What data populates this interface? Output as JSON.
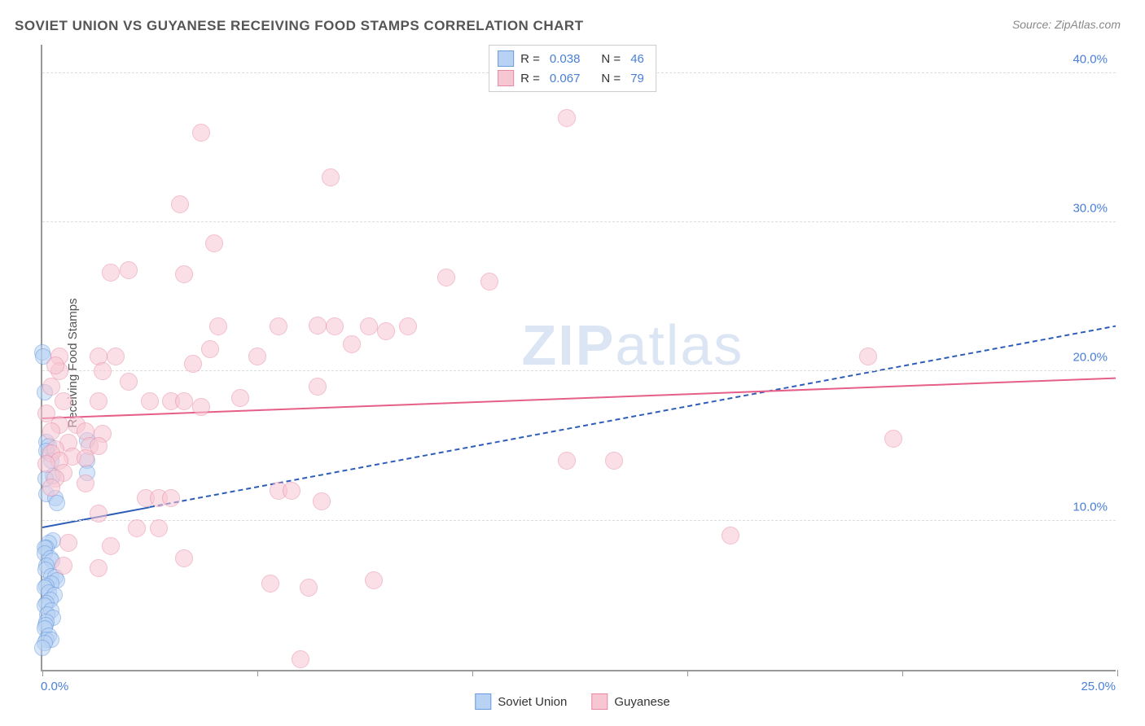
{
  "title": "SOVIET UNION VS GUYANESE RECEIVING FOOD STAMPS CORRELATION CHART",
  "source_label": "Source:",
  "source_value": "ZipAtlas.com",
  "y_axis_label": "Receiving Food Stamps",
  "watermark": {
    "bold": "ZIP",
    "rest": "atlas"
  },
  "chart": {
    "type": "scatter",
    "background_color": "#ffffff",
    "grid_color": "#dddddd",
    "axis_color": "#999999",
    "x": {
      "min": 0,
      "max": 25,
      "ticks": [
        0,
        5,
        10,
        15,
        20,
        25
      ],
      "tick_labels": {
        "0": "0.0%",
        "25": "25.0%"
      }
    },
    "y": {
      "min": 0,
      "max": 42,
      "ticks": [
        10,
        20,
        30,
        40
      ],
      "tick_labels": {
        "10": "10.0%",
        "20": "20.0%",
        "30": "30.0%",
        "40": "40.0%"
      }
    },
    "tick_label_color": "#4a7fd6",
    "tick_label_fontsize": 15,
    "series": [
      {
        "name": "Soviet Union",
        "marker_fill": "#b8d2f3",
        "marker_stroke": "#6a9ae0",
        "marker_fill_opacity": 0.55,
        "marker_radius": 10,
        "trend": {
          "color": "#2e5db8",
          "width": 2.5,
          "dash": "6 6",
          "y_at_xmin": 9.5,
          "y_at_xmax": 23.0,
          "solid_until_x": 2.5
        },
        "R": "0.038",
        "N": "46",
        "points": [
          [
            0.0,
            21.3
          ],
          [
            0.02,
            21.0
          ],
          [
            0.05,
            18.6
          ],
          [
            0.1,
            15.3
          ],
          [
            0.15,
            15.0
          ],
          [
            0.1,
            14.7
          ],
          [
            0.2,
            14.0
          ],
          [
            0.25,
            13.0
          ],
          [
            0.08,
            12.8
          ],
          [
            0.1,
            11.8
          ],
          [
            0.3,
            11.5
          ],
          [
            0.35,
            11.2
          ],
          [
            0.25,
            8.7
          ],
          [
            0.15,
            8.5
          ],
          [
            0.1,
            8.2
          ],
          [
            0.05,
            8.2
          ],
          [
            0.05,
            7.8
          ],
          [
            0.18,
            7.5
          ],
          [
            0.22,
            7.3
          ],
          [
            0.1,
            7.0
          ],
          [
            0.08,
            6.7
          ],
          [
            0.2,
            6.3
          ],
          [
            0.3,
            6.2
          ],
          [
            0.35,
            6.0
          ],
          [
            0.2,
            5.8
          ],
          [
            0.1,
            5.6
          ],
          [
            0.05,
            5.5
          ],
          [
            0.15,
            5.2
          ],
          [
            0.28,
            5.0
          ],
          [
            0.18,
            4.7
          ],
          [
            0.1,
            4.5
          ],
          [
            0.05,
            4.3
          ],
          [
            0.2,
            4.0
          ],
          [
            0.12,
            3.7
          ],
          [
            0.25,
            3.5
          ],
          [
            0.1,
            3.2
          ],
          [
            0.08,
            3.0
          ],
          [
            0.05,
            2.8
          ],
          [
            0.15,
            2.3
          ],
          [
            0.1,
            2.0
          ],
          [
            0.2,
            2.0
          ],
          [
            0.05,
            1.8
          ],
          [
            0.0,
            1.5
          ],
          [
            1.05,
            15.4
          ],
          [
            1.05,
            14.0
          ],
          [
            1.05,
            13.2
          ]
        ]
      },
      {
        "name": "Guyanese",
        "marker_fill": "#f7c6d3",
        "marker_stroke": "#e88aa5",
        "marker_fill_opacity": 0.55,
        "marker_radius": 11,
        "trend": {
          "color": "#e65f88",
          "width": 2.5,
          "dash": null,
          "y_at_xmin": 16.8,
          "y_at_xmax": 19.5
        },
        "R": "0.067",
        "N": "79",
        "points": [
          [
            12.2,
            37.0
          ],
          [
            3.7,
            36.0
          ],
          [
            6.7,
            33.0
          ],
          [
            3.2,
            31.2
          ],
          [
            4.0,
            28.6
          ],
          [
            2.0,
            26.8
          ],
          [
            1.6,
            26.6
          ],
          [
            3.3,
            26.5
          ],
          [
            9.4,
            26.3
          ],
          [
            10.4,
            26.0
          ],
          [
            6.4,
            23.1
          ],
          [
            6.8,
            23.0
          ],
          [
            4.1,
            23.0
          ],
          [
            5.5,
            23.0
          ],
          [
            7.6,
            23.0
          ],
          [
            8.5,
            23.0
          ],
          [
            8.0,
            22.7
          ],
          [
            0.4,
            21.0
          ],
          [
            1.3,
            21.0
          ],
          [
            1.7,
            21.0
          ],
          [
            5.0,
            21.0
          ],
          [
            3.5,
            20.5
          ],
          [
            0.4,
            20.0
          ],
          [
            1.4,
            20.0
          ],
          [
            19.2,
            21.0
          ],
          [
            2.0,
            19.3
          ],
          [
            6.4,
            19.0
          ],
          [
            1.3,
            18.0
          ],
          [
            0.5,
            18.0
          ],
          [
            2.5,
            18.0
          ],
          [
            3.0,
            18.0
          ],
          [
            3.3,
            18.0
          ],
          [
            3.7,
            17.6
          ],
          [
            0.8,
            16.4
          ],
          [
            0.4,
            16.4
          ],
          [
            0.2,
            16.0
          ],
          [
            1.0,
            16.0
          ],
          [
            1.4,
            15.8
          ],
          [
            19.8,
            15.5
          ],
          [
            0.6,
            15.2
          ],
          [
            1.1,
            15.0
          ],
          [
            1.3,
            15.0
          ],
          [
            0.3,
            14.8
          ],
          [
            0.2,
            14.5
          ],
          [
            0.7,
            14.3
          ],
          [
            1.0,
            14.2
          ],
          [
            0.4,
            14.0
          ],
          [
            0.1,
            13.8
          ],
          [
            12.2,
            14.0
          ],
          [
            13.3,
            14.0
          ],
          [
            0.5,
            13.2
          ],
          [
            0.3,
            12.8
          ],
          [
            1.0,
            12.5
          ],
          [
            0.2,
            12.2
          ],
          [
            5.5,
            12.0
          ],
          [
            5.8,
            12.0
          ],
          [
            2.4,
            11.5
          ],
          [
            2.7,
            11.5
          ],
          [
            3.0,
            11.5
          ],
          [
            6.5,
            11.3
          ],
          [
            1.3,
            10.5
          ],
          [
            2.2,
            9.5
          ],
          [
            2.7,
            9.5
          ],
          [
            16.0,
            9.0
          ],
          [
            0.6,
            8.5
          ],
          [
            1.6,
            8.3
          ],
          [
            3.3,
            7.5
          ],
          [
            0.5,
            7.0
          ],
          [
            1.3,
            6.8
          ],
          [
            5.3,
            5.8
          ],
          [
            6.2,
            5.5
          ],
          [
            7.7,
            6.0
          ],
          [
            6.0,
            0.7
          ],
          [
            0.3,
            20.4
          ],
          [
            0.2,
            19.0
          ],
          [
            0.1,
            17.2
          ],
          [
            4.6,
            18.2
          ],
          [
            3.9,
            21.5
          ],
          [
            7.2,
            21.8
          ]
        ]
      }
    ],
    "legend_top": {
      "border_color": "#cccccc"
    },
    "legend_bottom_labels": [
      "Soviet Union",
      "Guyanese"
    ]
  }
}
